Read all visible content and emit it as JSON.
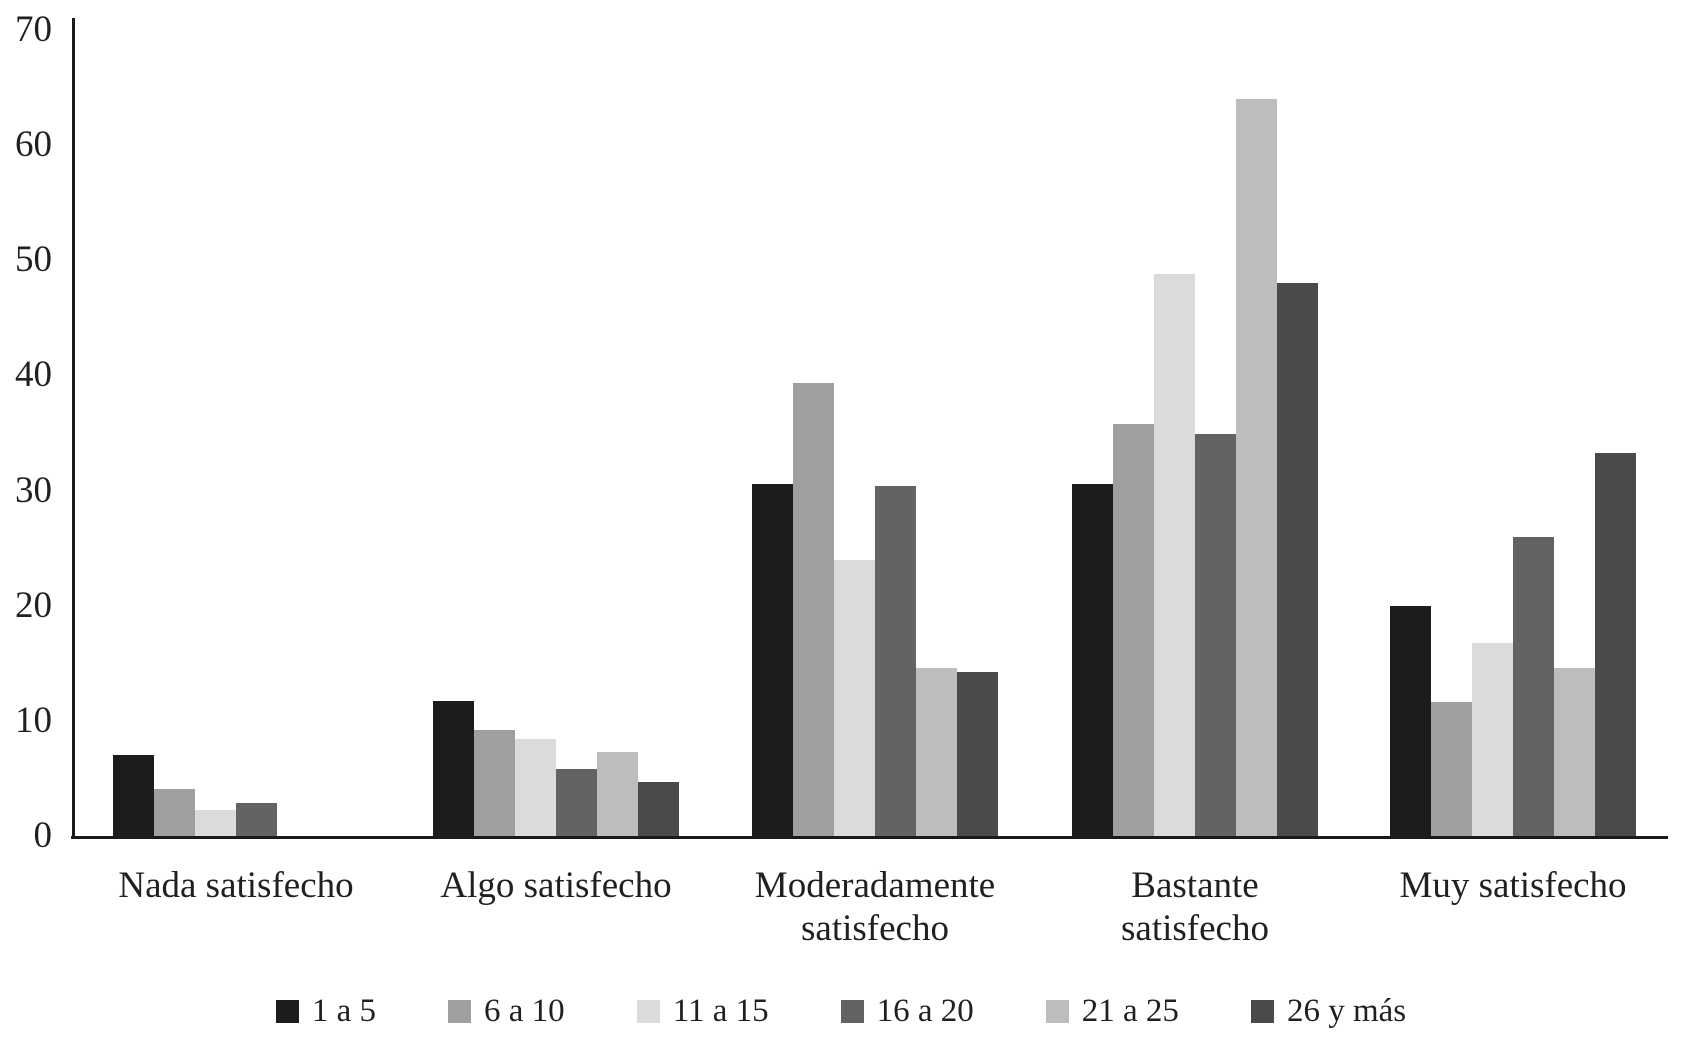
{
  "figure": {
    "background": "#ffffff",
    "text_color": "#231f20",
    "axis_color": "#1a1a1a"
  },
  "chart_data": {
    "type": "bar",
    "title": "",
    "xlabel": "",
    "ylabel": "",
    "ylim": [
      0,
      70
    ],
    "yticks": [
      "0",
      "10",
      "20",
      "30",
      "40",
      "50",
      "60",
      "70"
    ],
    "grid": false,
    "legend_position": "bottom",
    "categories": [
      "Nada satisfecho",
      "Algo satisfecho",
      "Moderadamente satisfecho",
      "Bastante satisfecho",
      "Muy satisfecho"
    ],
    "category_lines": [
      [
        "Nada satisfecho"
      ],
      [
        "Algo satisfecho"
      ],
      [
        "Moderadamente",
        "satisfecho"
      ],
      [
        "Bastante",
        "satisfecho"
      ],
      [
        "Muy satisfecho"
      ]
    ],
    "series": [
      {
        "name": "1 a 5",
        "color": "#1d1b1b",
        "values": [
          7.0,
          11.7,
          30.6,
          30.6,
          20.0
        ]
      },
      {
        "name": "6 a 10",
        "color": "#9f9f9f",
        "values": [
          4.1,
          9.2,
          39.3,
          35.8,
          11.6
        ]
      },
      {
        "name": "11 a 15",
        "color": "#dbdbdb",
        "values": [
          2.3,
          8.4,
          24.0,
          48.8,
          16.8
        ]
      },
      {
        "name": "16 a 20",
        "color": "#636363",
        "values": [
          2.9,
          5.8,
          30.4,
          34.9,
          26.0
        ]
      },
      {
        "name": "21 a 25",
        "color": "#bdbdbd",
        "values": [
          0,
          7.3,
          14.6,
          64.0,
          14.6
        ]
      },
      {
        "name": "26 y más",
        "color": "#4a4a4a",
        "values": [
          0,
          4.7,
          14.2,
          48.0,
          33.3
        ]
      }
    ]
  }
}
